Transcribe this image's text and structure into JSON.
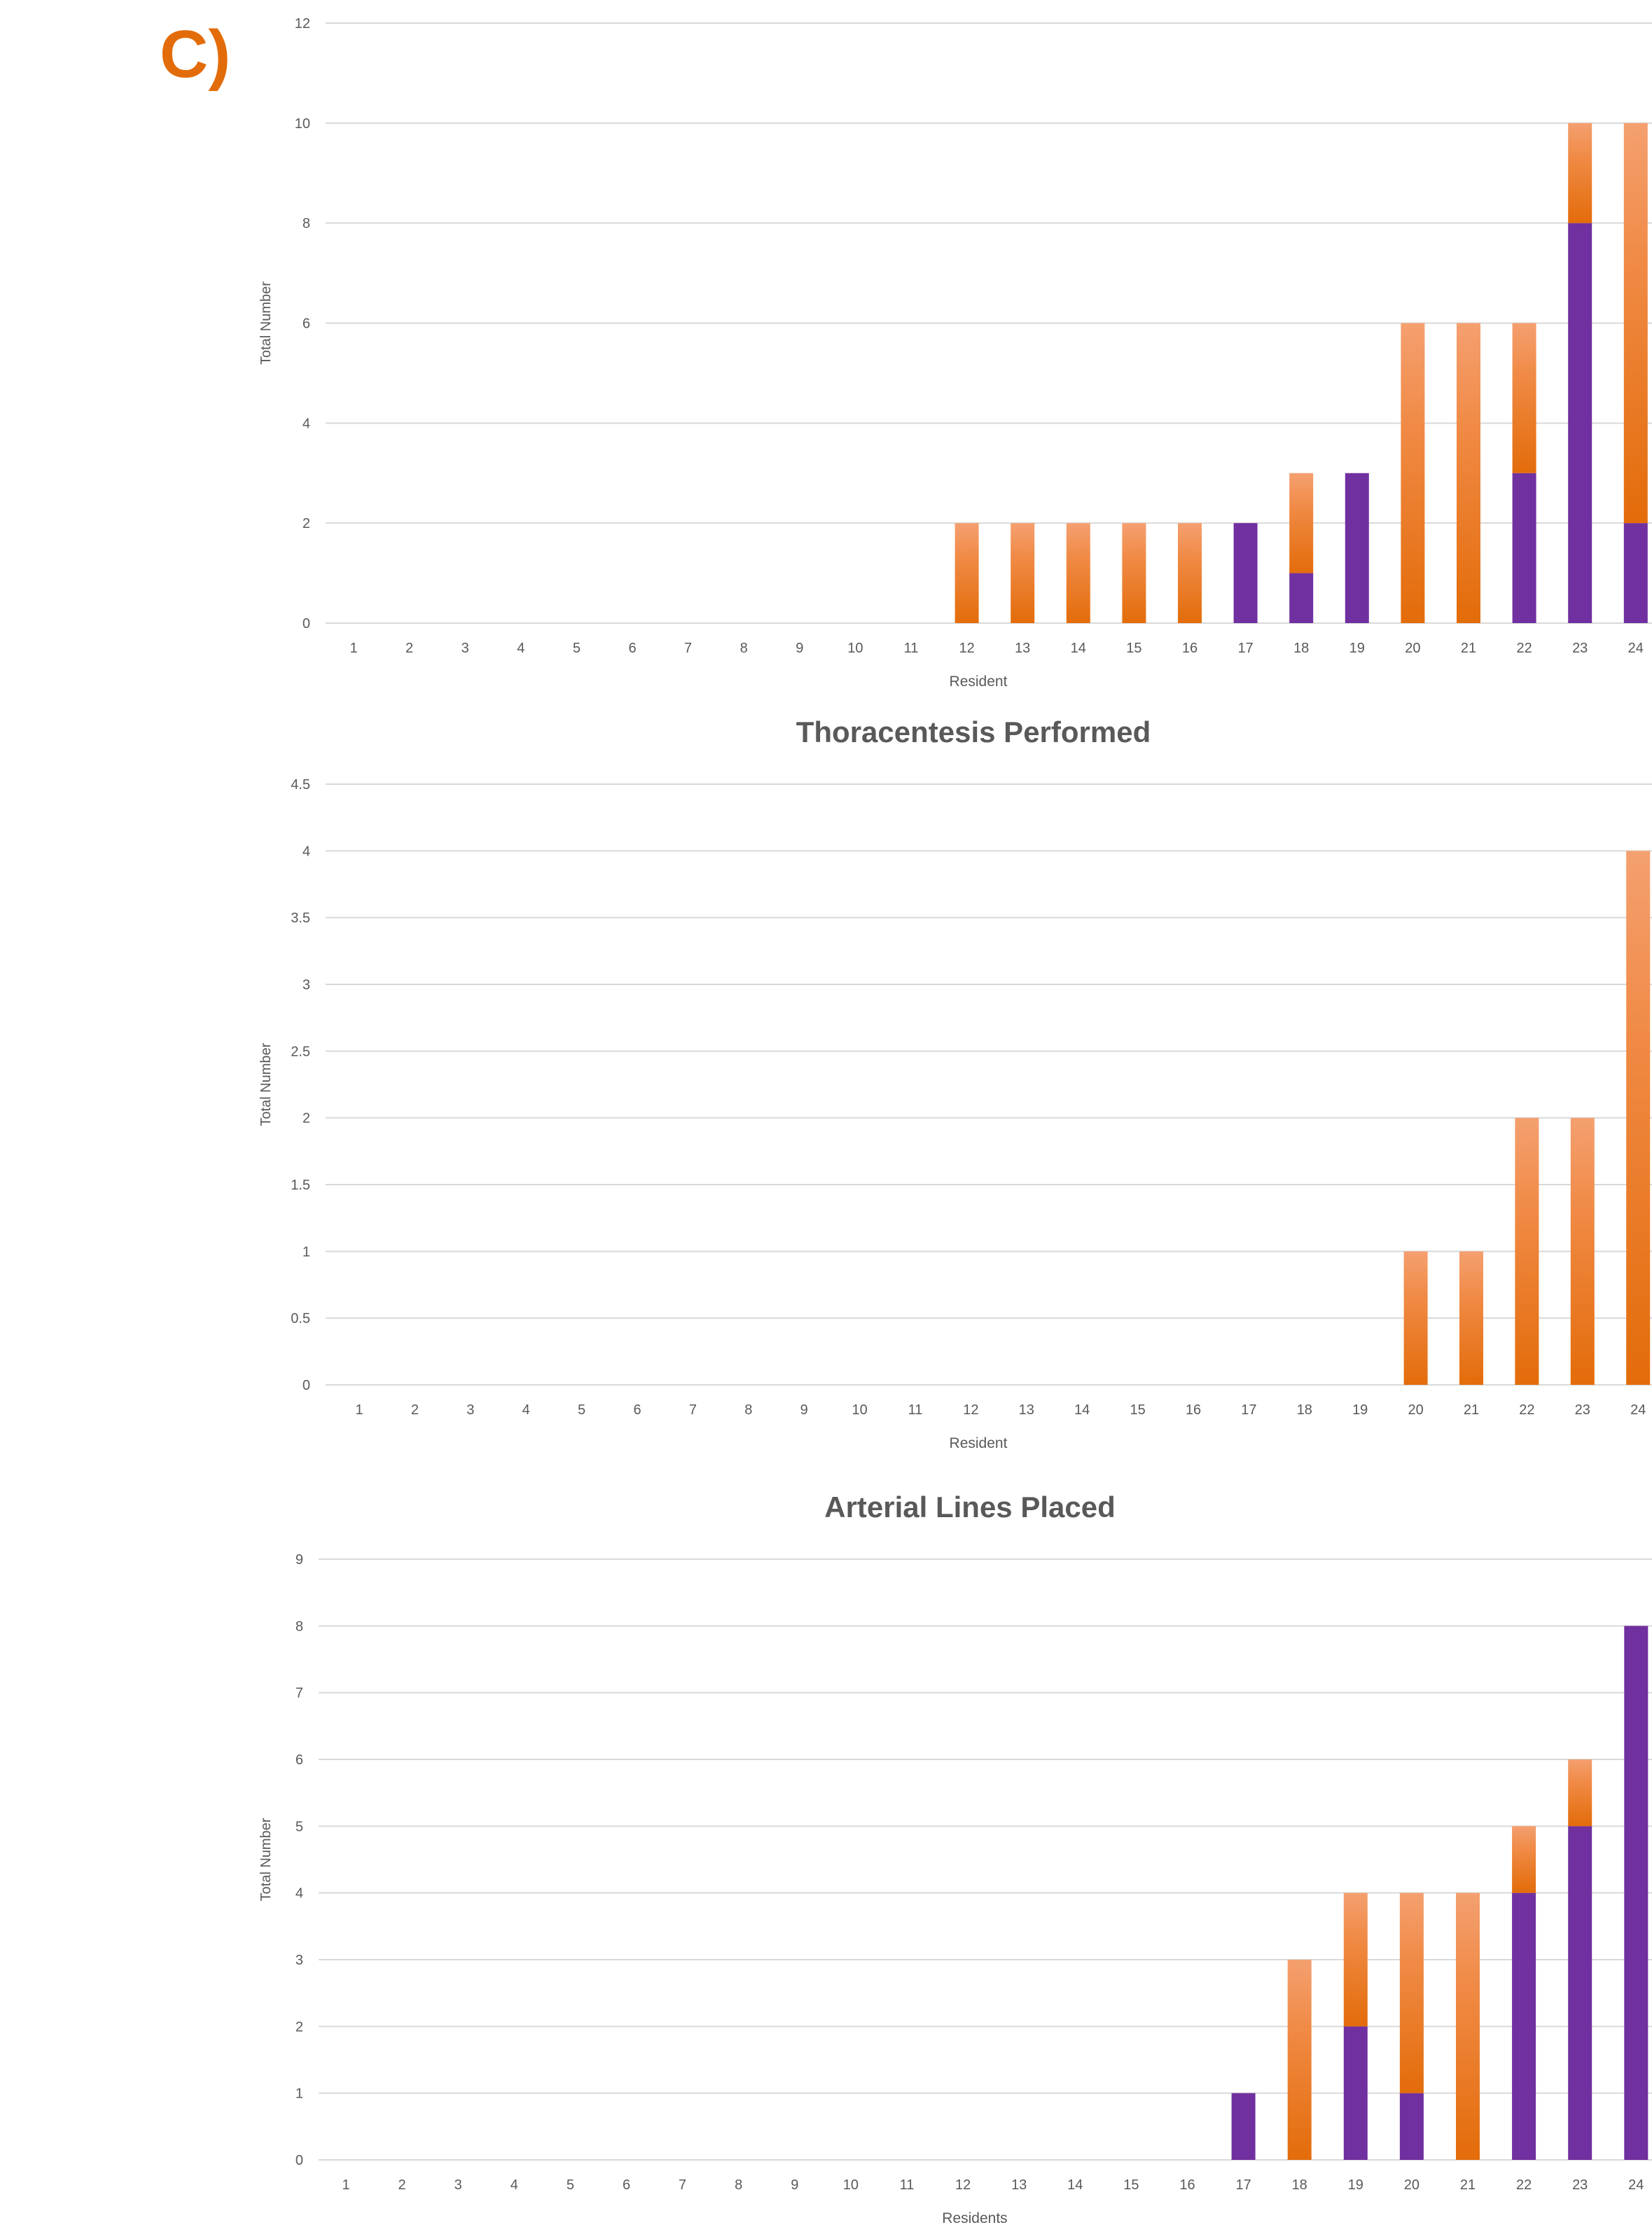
{
  "panel_label": "C)",
  "colors": {
    "purple": "#7030A0",
    "orange_dark": "#E36C0A",
    "orange_light": "#F4A070",
    "grid": "#D9D9D9",
    "text": "#595959",
    "title": "#595959"
  },
  "chart_data": [
    {
      "type": "bar",
      "stacked": true,
      "title": "",
      "xlabel": "Resident",
      "ylabel": "Total Number",
      "ylim": [
        0,
        12
      ],
      "yticks": [
        "0",
        "2",
        "4",
        "6",
        "8",
        "10",
        "12"
      ],
      "categories": [
        "1",
        "2",
        "3",
        "4",
        "5",
        "6",
        "7",
        "8",
        "9",
        "10",
        "11",
        "12",
        "13",
        "14",
        "15",
        "16",
        "17",
        "18",
        "19",
        "20",
        "21",
        "22",
        "23",
        "24"
      ],
      "series": [
        {
          "color": "purple",
          "values": [
            0,
            0,
            0,
            0,
            0,
            0,
            0,
            0,
            0,
            0,
            0,
            0,
            0,
            0,
            0,
            0,
            2,
            1,
            3,
            0,
            0,
            3,
            8,
            2
          ]
        },
        {
          "color": "orange",
          "values": [
            0,
            0,
            0,
            0,
            0,
            0,
            0,
            0,
            0,
            0,
            0,
            2,
            2,
            2,
            2,
            2,
            0,
            2,
            0,
            6,
            6,
            3,
            2,
            8
          ]
        }
      ]
    },
    {
      "type": "bar",
      "stacked": true,
      "title": "Thoracentesis Performed",
      "xlabel": "Resident",
      "ylabel": "Total Number",
      "ylim": [
        0,
        4.5
      ],
      "yticks": [
        "0",
        "0.5",
        "1",
        "1.5",
        "2",
        "2.5",
        "3",
        "3.5",
        "4",
        "4.5"
      ],
      "categories": [
        "1",
        "2",
        "3",
        "4",
        "5",
        "6",
        "7",
        "8",
        "9",
        "10",
        "11",
        "12",
        "13",
        "14",
        "15",
        "16",
        "17",
        "18",
        "19",
        "20",
        "21",
        "22",
        "23",
        "24"
      ],
      "series": [
        {
          "color": "purple",
          "values": [
            0,
            0,
            0,
            0,
            0,
            0,
            0,
            0,
            0,
            0,
            0,
            0,
            0,
            0,
            0,
            0,
            0,
            0,
            0,
            0,
            0,
            0,
            0,
            0
          ]
        },
        {
          "color": "orange",
          "values": [
            0,
            0,
            0,
            0,
            0,
            0,
            0,
            0,
            0,
            0,
            0,
            0,
            0,
            0,
            0,
            0,
            0,
            0,
            0,
            1,
            1,
            2,
            2,
            4
          ]
        }
      ]
    },
    {
      "type": "bar",
      "stacked": true,
      "title": "Arterial Lines Placed",
      "xlabel": "Residents",
      "ylabel": "Total Number",
      "ylim": [
        0,
        9
      ],
      "yticks": [
        "0",
        "1",
        "2",
        "3",
        "4",
        "5",
        "6",
        "7",
        "8",
        "9"
      ],
      "categories": [
        "1",
        "2",
        "3",
        "4",
        "5",
        "6",
        "7",
        "8",
        "9",
        "10",
        "11",
        "12",
        "13",
        "14",
        "15",
        "16",
        "17",
        "18",
        "19",
        "20",
        "21",
        "22",
        "23",
        "24"
      ],
      "series": [
        {
          "color": "purple",
          "values": [
            0,
            0,
            0,
            0,
            0,
            0,
            0,
            0,
            0,
            0,
            0,
            0,
            0,
            0,
            0,
            0,
            1,
            0,
            2,
            1,
            0,
            4,
            5,
            8
          ]
        },
        {
          "color": "orange",
          "values": [
            0,
            0,
            0,
            0,
            0,
            0,
            0,
            0,
            0,
            0,
            0,
            0,
            0,
            0,
            0,
            0,
            0,
            3,
            2,
            3,
            4,
            1,
            1,
            0
          ]
        }
      ]
    }
  ]
}
